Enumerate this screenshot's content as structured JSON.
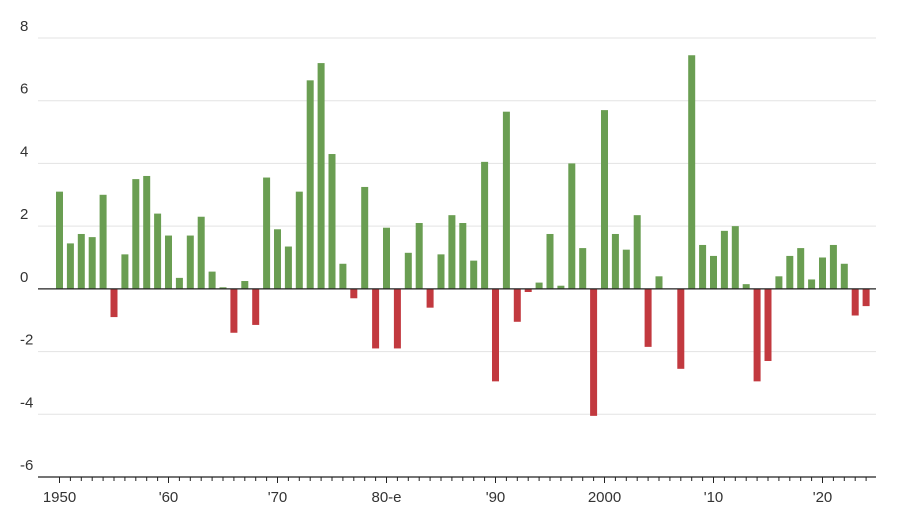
{
  "chart_data": {
    "type": "bar",
    "title": "",
    "xlabel": "",
    "ylabel": "",
    "ylim": [
      -6,
      8
    ],
    "yticks": [
      8,
      6,
      4,
      2,
      0,
      -2,
      -4,
      -6
    ],
    "ytick_labels": [
      "8",
      "6",
      "4",
      "2",
      "0",
      "-2",
      "-4",
      "-6"
    ],
    "grid": true,
    "positive_color": "#6a9e52",
    "negative_color": "#c2393f",
    "xlim": [
      1950,
      2024
    ],
    "x_tick_labels": [
      {
        "year": 1950,
        "label": "1950"
      },
      {
        "year": 1960,
        "label": "'60"
      },
      {
        "year": 1970,
        "label": "'70"
      },
      {
        "year": 1980,
        "label": "80-e"
      },
      {
        "year": 1990,
        "label": "'90"
      },
      {
        "year": 2000,
        "label": "2000"
      },
      {
        "year": 2010,
        "label": "'10"
      },
      {
        "year": 2020,
        "label": "'20"
      }
    ],
    "categories": [
      1950,
      1951,
      1952,
      1953,
      1954,
      1955,
      1956,
      1957,
      1958,
      1959,
      1960,
      1961,
      1962,
      1963,
      1964,
      1965,
      1966,
      1967,
      1968,
      1969,
      1970,
      1971,
      1972,
      1973,
      1974,
      1975,
      1976,
      1977,
      1978,
      1979,
      1980,
      1981,
      1982,
      1983,
      1984,
      1985,
      1986,
      1987,
      1988,
      1989,
      1990,
      1991,
      1992,
      1993,
      1994,
      1995,
      1996,
      1997,
      1998,
      1999,
      2000,
      2001,
      2002,
      2003,
      2004,
      2005,
      2006,
      2007,
      2008,
      2009,
      2010,
      2011,
      2012,
      2013,
      2014,
      2015,
      2016,
      2017,
      2018,
      2019,
      2020,
      2021,
      2022,
      2023,
      2024
    ],
    "values": [
      3.1,
      1.45,
      1.75,
      1.65,
      3.0,
      -0.9,
      1.1,
      3.5,
      3.6,
      2.4,
      1.7,
      0.35,
      1.7,
      2.3,
      0.55,
      0.05,
      -1.4,
      0.25,
      -1.15,
      3.55,
      1.9,
      1.35,
      3.1,
      6.65,
      7.2,
      4.3,
      0.8,
      -0.3,
      3.25,
      -1.9,
      1.95,
      -1.9,
      1.15,
      2.1,
      -0.6,
      1.1,
      2.35,
      2.1,
      0.9,
      4.05,
      -2.95,
      5.65,
      -1.05,
      -0.1,
      0.2,
      1.75,
      0.1,
      4.0,
      1.3,
      -4.05,
      5.7,
      1.75,
      1.25,
      2.35,
      -1.85,
      0.4,
      0,
      -2.55,
      7.45,
      1.4,
      1.05,
      1.85,
      2.0,
      0.15,
      -2.95,
      -2.3,
      0.4,
      1.05,
      1.3,
      0.3,
      1.0,
      1.4,
      0.8,
      -0.85,
      -0.55
    ]
  }
}
